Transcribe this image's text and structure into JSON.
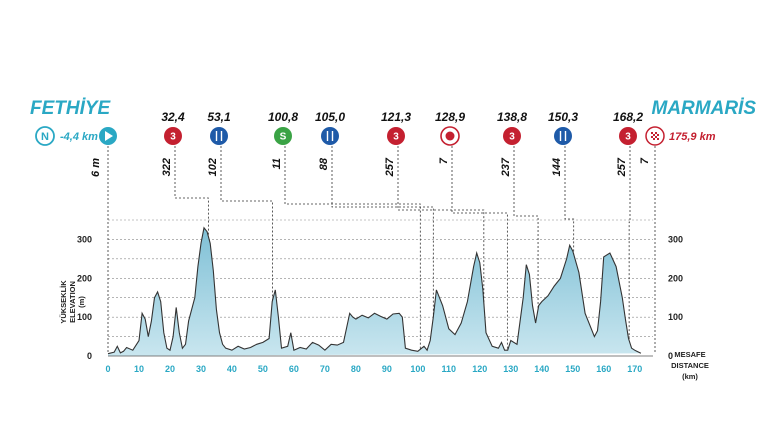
{
  "start": {
    "name": "FETHİYE",
    "neutral_badge": "N",
    "neutral_distance": "-4,4 km"
  },
  "finish": {
    "name": "MARMARİS",
    "distance": "175,9 km"
  },
  "colors": {
    "accent": "#2aa8c4",
    "fill": "#a4d2e1",
    "line": "#333333",
    "red": "#c42030",
    "blue": "#1e5aa8",
    "green": "#3aa345"
  },
  "axes": {
    "y_title_tr": "YÜKSEKLİK",
    "y_title_en": "ELEVATION",
    "y_unit": "(m)",
    "x_title_tr": "MESAFE",
    "x_title_en": "DISTANCE",
    "x_unit": "(km)"
  },
  "chart_data": {
    "type": "area",
    "xlim": [
      0,
      175.9
    ],
    "ylim": [
      0,
      350
    ],
    "x_ticks": [
      0,
      10,
      20,
      30,
      40,
      50,
      60,
      70,
      80,
      90,
      100,
      110,
      120,
      130,
      140,
      150,
      160,
      170
    ],
    "y_ticks": [
      0,
      100,
      200,
      300
    ],
    "profile_km": [
      0,
      2,
      3,
      4,
      5,
      6,
      8,
      10,
      11,
      12,
      13,
      14,
      15,
      16,
      17,
      18,
      19,
      20,
      21,
      22,
      23,
      24,
      25,
      26,
      28,
      29,
      30,
      31,
      32,
      33,
      34,
      35,
      36,
      37,
      38,
      40,
      42,
      44,
      46,
      48,
      50,
      52,
      53,
      54,
      55,
      56,
      58,
      59,
      60,
      62,
      64,
      66,
      68,
      70,
      72,
      74,
      76,
      78,
      79,
      80,
      82,
      84,
      86,
      88,
      90,
      92,
      94,
      95,
      96,
      98,
      100,
      102,
      103,
      104,
      105,
      106,
      108,
      110,
      112,
      114,
      116,
      118,
      119,
      120,
      121,
      122,
      124,
      126,
      127,
      128,
      129,
      130,
      132,
      134,
      135,
      136,
      137,
      138,
      139,
      140,
      142,
      144,
      146,
      148,
      149,
      150,
      152,
      154,
      156,
      157,
      158,
      159,
      160,
      162,
      164,
      166,
      167,
      168,
      169,
      170,
      172,
      174,
      175.9
    ],
    "profile_m": [
      6,
      10,
      25,
      8,
      12,
      22,
      15,
      40,
      110,
      95,
      50,
      90,
      150,
      165,
      140,
      60,
      20,
      15,
      50,
      125,
      60,
      20,
      30,
      90,
      150,
      230,
      290,
      330,
      320,
      290,
      220,
      120,
      60,
      30,
      20,
      15,
      25,
      18,
      22,
      30,
      35,
      45,
      140,
      170,
      100,
      20,
      25,
      60,
      15,
      22,
      18,
      35,
      28,
      15,
      30,
      28,
      35,
      110,
      100,
      95,
      105,
      98,
      110,
      102,
      95,
      108,
      110,
      100,
      20,
      15,
      12,
      25,
      15,
      40,
      100,
      170,
      130,
      70,
      55,
      85,
      140,
      230,
      265,
      240,
      170,
      60,
      25,
      20,
      35,
      15,
      15,
      40,
      30,
      150,
      235,
      210,
      130,
      85,
      130,
      140,
      155,
      180,
      200,
      250,
      285,
      270,
      215,
      110,
      70,
      50,
      65,
      140,
      255,
      265,
      230,
      150,
      95,
      45,
      20,
      15,
      7
    ]
  },
  "waypoints": [
    {
      "km": 32.4,
      "km_label": "32,4",
      "type": "climb",
      "badge": "3",
      "alt": "322",
      "anchor_km": 32.4,
      "rising_km": 25
    },
    {
      "km": 53.1,
      "km_label": "53,1",
      "type": "feed",
      "badge": "",
      "alt": "102",
      "anchor_km": 53.1,
      "rising_km": 36
    },
    {
      "km": 100.8,
      "km_label": "100,8",
      "type": "sprint",
      "badge": "S",
      "alt": "11",
      "anchor_km": 100.8,
      "rising_km": 56
    },
    {
      "km": 105.0,
      "km_label": "105,0",
      "type": "feed",
      "badge": "",
      "alt": "88",
      "anchor_km": 105.0,
      "rising_km": 66
    },
    {
      "km": 121.3,
      "km_label": "121,3",
      "type": "climb",
      "badge": "3",
      "alt": "257",
      "anchor_km": 121.3,
      "rising_km": 80
    },
    {
      "km": 128.9,
      "km_label": "128,9",
      "type": "bonus",
      "badge": "",
      "alt": "7",
      "anchor_km": 128.9,
      "rising_km": 100
    },
    {
      "km": 138.8,
      "km_label": "138,8",
      "type": "climb",
      "badge": "3",
      "alt": "237",
      "anchor_km": 138.8,
      "rising_km": 130
    },
    {
      "km": 150.3,
      "km_label": "150,3",
      "type": "feed",
      "badge": "",
      "alt": "144",
      "anchor_km": 150.3,
      "rising_km": 150
    },
    {
      "km": 168.2,
      "km_label": "168,2",
      "type": "climb",
      "badge": "3",
      "alt": "257",
      "anchor_km": 168.2,
      "rising_km": 168.2
    }
  ],
  "start_alt": "6 m",
  "finish_alt": "7"
}
